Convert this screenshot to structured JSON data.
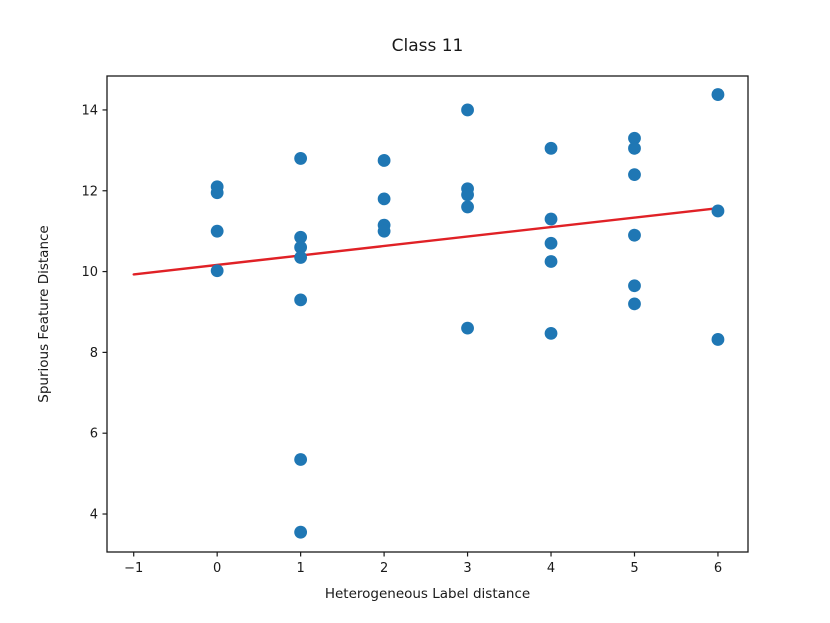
{
  "chart_data": {
    "type": "scatter",
    "title": "Class 11",
    "xlabel": "Heterogeneous Label distance",
    "ylabel": "Spurious Feature Distance",
    "xlim": [
      -1.32,
      6.36
    ],
    "ylim": [
      3.06,
      14.84
    ],
    "x_ticks": [
      -1,
      0,
      1,
      2,
      3,
      4,
      5,
      6
    ],
    "y_ticks": [
      4,
      6,
      8,
      10,
      12,
      14
    ],
    "grid": false,
    "legend": "none",
    "colors": {
      "point": "#1f77b4",
      "trend_line": "#e02126",
      "axis": "#1a1a1a",
      "text": "#1a1a1a",
      "background": "#ffffff"
    },
    "points": [
      [
        0,
        12.1
      ],
      [
        0,
        11.95
      ],
      [
        0,
        11.0
      ],
      [
        0,
        10.02
      ],
      [
        1,
        12.8
      ],
      [
        1,
        10.85
      ],
      [
        1,
        10.6
      ],
      [
        1,
        10.35
      ],
      [
        1,
        9.3
      ],
      [
        1,
        5.35
      ],
      [
        1,
        3.55
      ],
      [
        2,
        12.75
      ],
      [
        2,
        11.8
      ],
      [
        2,
        11.15
      ],
      [
        2,
        11.0
      ],
      [
        3,
        14.0
      ],
      [
        3,
        12.05
      ],
      [
        3,
        11.9
      ],
      [
        3,
        11.6
      ],
      [
        3,
        8.6
      ],
      [
        4,
        13.05
      ],
      [
        4,
        11.3
      ],
      [
        4,
        10.7
      ],
      [
        4,
        10.25
      ],
      [
        4,
        8.47
      ],
      [
        5,
        13.3
      ],
      [
        5,
        13.05
      ],
      [
        5,
        12.4
      ],
      [
        5,
        10.9
      ],
      [
        5,
        9.65
      ],
      [
        5,
        9.2
      ],
      [
        6,
        14.38
      ],
      [
        6,
        11.5
      ],
      [
        6,
        8.32
      ]
    ],
    "trend_line": {
      "x1": -1,
      "y1": 9.93,
      "x2": 6,
      "y2": 11.57
    }
  }
}
